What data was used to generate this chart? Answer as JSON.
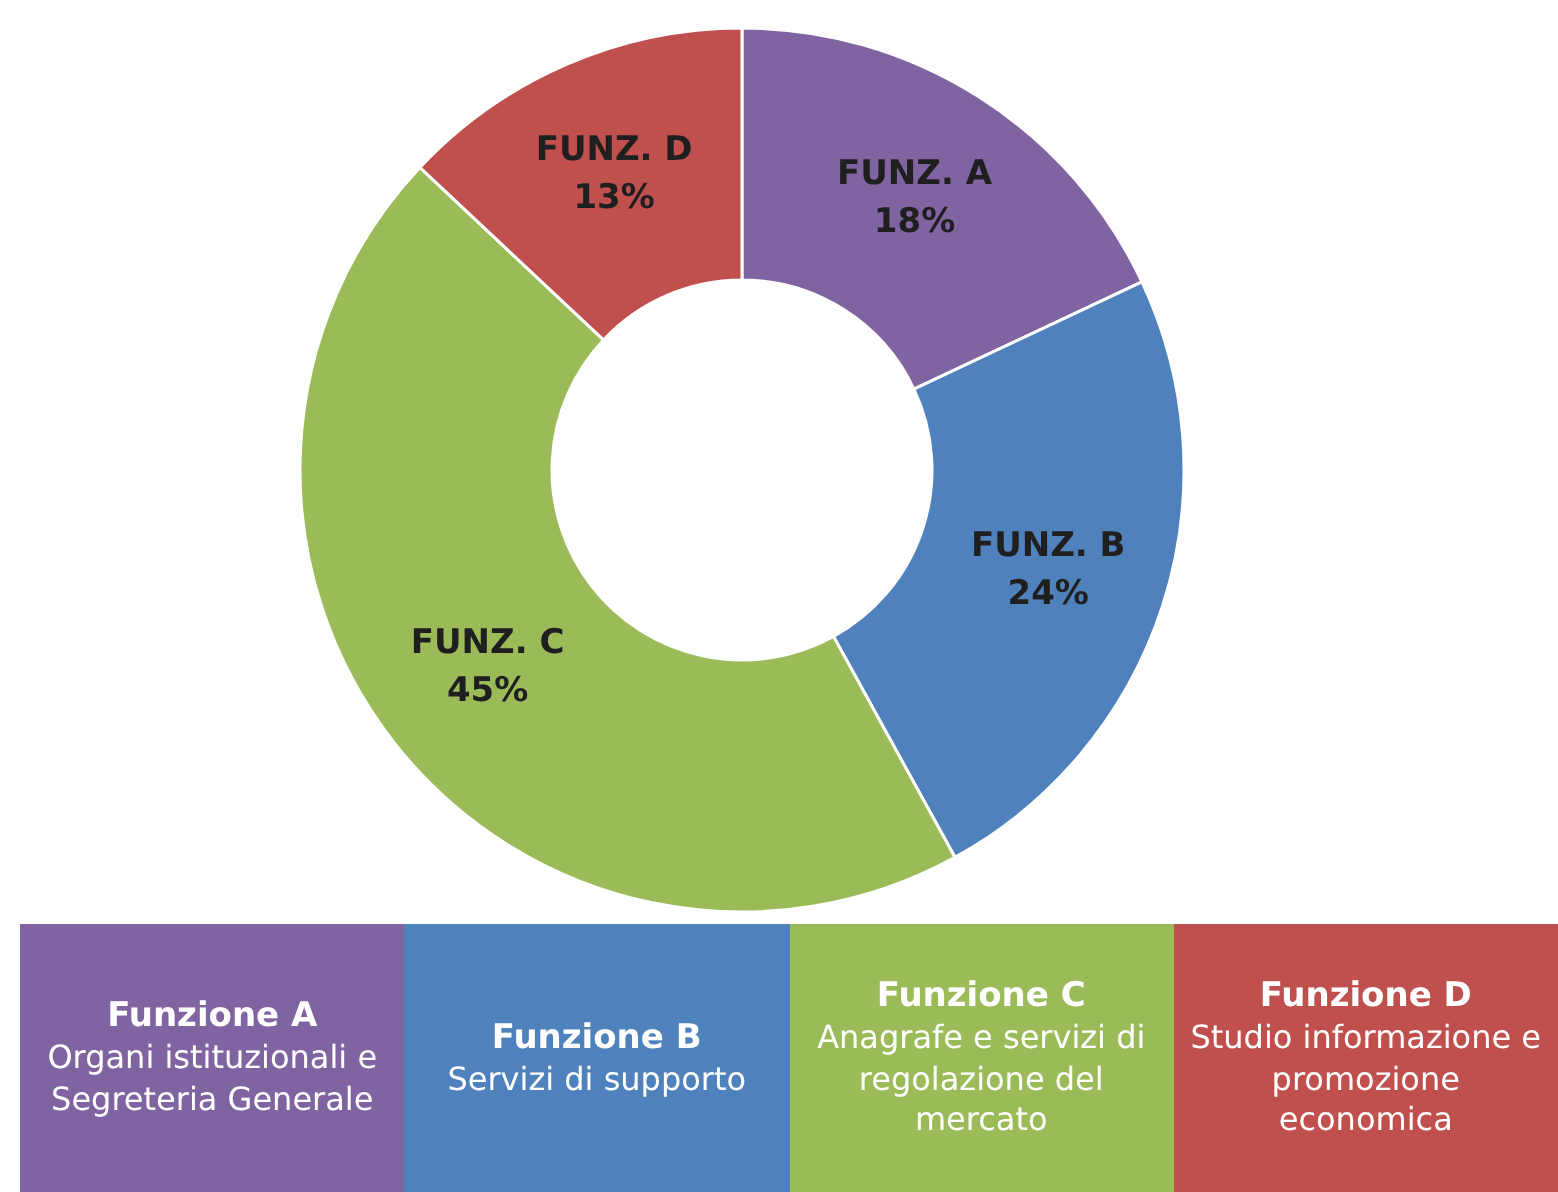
{
  "chart_data": {
    "type": "donut",
    "categories": [
      "FUNZ. A",
      "FUNZ. B",
      "FUNZ. C",
      "FUNZ. D"
    ],
    "values": [
      18,
      24,
      45,
      13
    ],
    "value_labels": [
      "18%",
      "24%",
      "45%",
      "13%"
    ],
    "colors": [
      "#8064a2",
      "#4f81bd",
      "#9bbb59",
      "#c0504d"
    ],
    "legend": false,
    "annotations": [
      "Funzione A",
      "Organi istituzionali e Segreteria Generale",
      "Funzione B",
      "Servizi di supporto",
      "Funzione C",
      "Anagrafe e servizi di regolazione del mercato",
      "Funzione D",
      "Studio informazione e promozione economica"
    ]
  }
}
